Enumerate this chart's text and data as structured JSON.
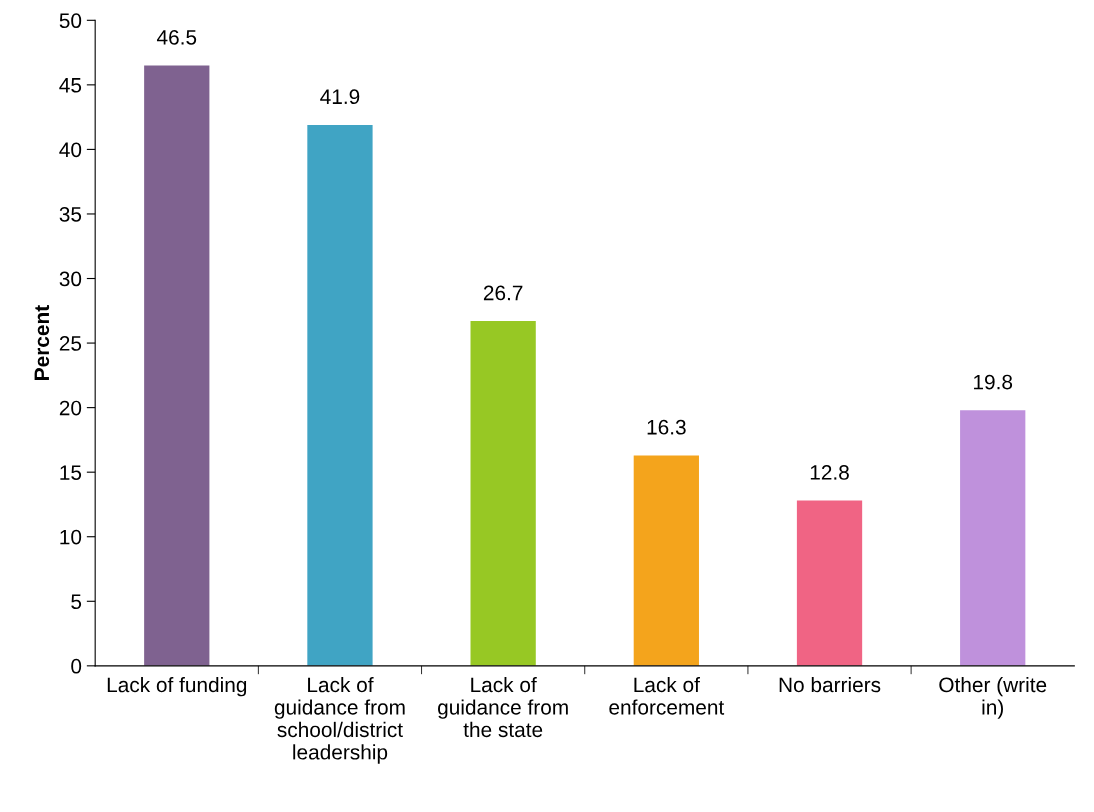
{
  "chart_data": {
    "type": "bar",
    "ylabel": "Percent",
    "categories": [
      "Lack of funding",
      "Lack of guidance from school/district leadership",
      "Lack of guidance from the state",
      "Lack of enforcement",
      "No barriers",
      "Other (write in)"
    ],
    "values": [
      46.5,
      41.9,
      26.7,
      16.3,
      12.8,
      19.8
    ],
    "colors": [
      "#7f6290",
      "#40a4c4",
      "#97c824",
      "#f4a41c",
      "#f06484",
      "#bf91dc"
    ],
    "ylim": [
      0,
      50
    ],
    "yticks": [
      0,
      5,
      10,
      15,
      20,
      25,
      30,
      35,
      40,
      45,
      50
    ],
    "data_labels": true,
    "grid": false,
    "legend": false
  }
}
